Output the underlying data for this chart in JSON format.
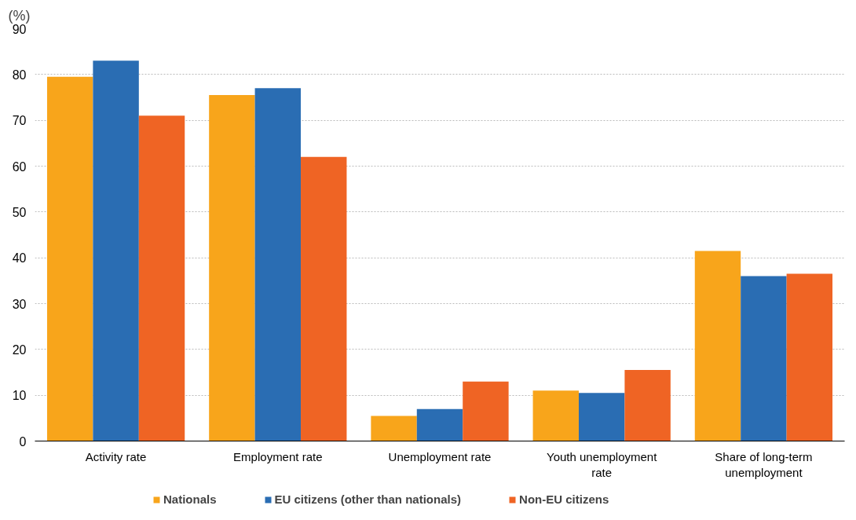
{
  "chart_data": {
    "type": "bar",
    "ylabel": "(%)",
    "categories": [
      "Activity rate",
      "Employment rate",
      "Unemployment rate",
      "Youth unemployment rate",
      "Share of long-term unemployment"
    ],
    "series": [
      {
        "name": "Nationals",
        "color": "#f8a51b",
        "values": [
          79.5,
          75.5,
          5.5,
          11,
          41.5
        ]
      },
      {
        "name": "EU citizens (other than nationals)",
        "color": "#2a6db3",
        "values": [
          83,
          77,
          7,
          10.5,
          36
        ]
      },
      {
        "name": "Non-EU citizens",
        "color": "#ef6424",
        "values": [
          71,
          62,
          13,
          15.5,
          36.5
        ]
      }
    ],
    "ylim": [
      0,
      90
    ],
    "yticks": [
      0,
      10,
      20,
      30,
      40,
      50,
      60,
      70,
      80,
      90
    ],
    "grid": "y",
    "legend": "bottom"
  }
}
